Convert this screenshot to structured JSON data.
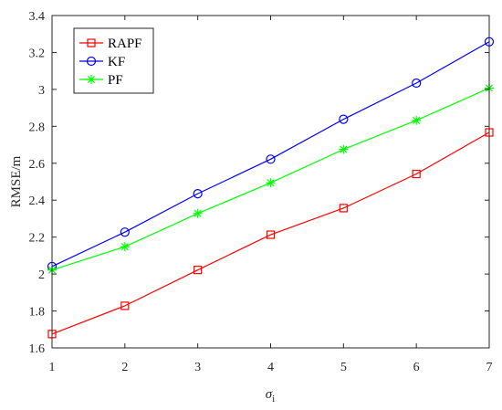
{
  "chart_data": {
    "type": "line",
    "x": [
      1,
      2,
      3,
      4,
      5,
      6,
      7
    ],
    "series": [
      {
        "name": "RAPF",
        "values": [
          1.675,
          1.828,
          2.022,
          2.213,
          2.357,
          2.542,
          2.767
        ],
        "color": "#ff0000",
        "marker": "square"
      },
      {
        "name": "KF",
        "values": [
          2.041,
          2.227,
          2.435,
          2.622,
          2.838,
          3.034,
          3.258
        ],
        "color": "#0000ff",
        "marker": "circle"
      },
      {
        "name": "PF",
        "values": [
          2.022,
          2.148,
          2.328,
          2.494,
          2.675,
          2.832,
          3.007
        ],
        "color": "#00ff00",
        "marker": "asterisk"
      }
    ],
    "xlabel_main": "σ",
    "xlabel_sub": "i",
    "ylabel": "RMSE/m",
    "xlim": [
      1,
      7
    ],
    "ylim": [
      1.6,
      3.4
    ],
    "x_ticks": [
      "1",
      "2",
      "3",
      "4",
      "5",
      "6",
      "7"
    ],
    "y_ticks": [
      "1.6",
      "1.8",
      "2",
      "2.2",
      "2.4",
      "2.6",
      "2.8",
      "3",
      "3.2",
      "3.4"
    ],
    "grid": false,
    "legend_position": "top-left"
  }
}
